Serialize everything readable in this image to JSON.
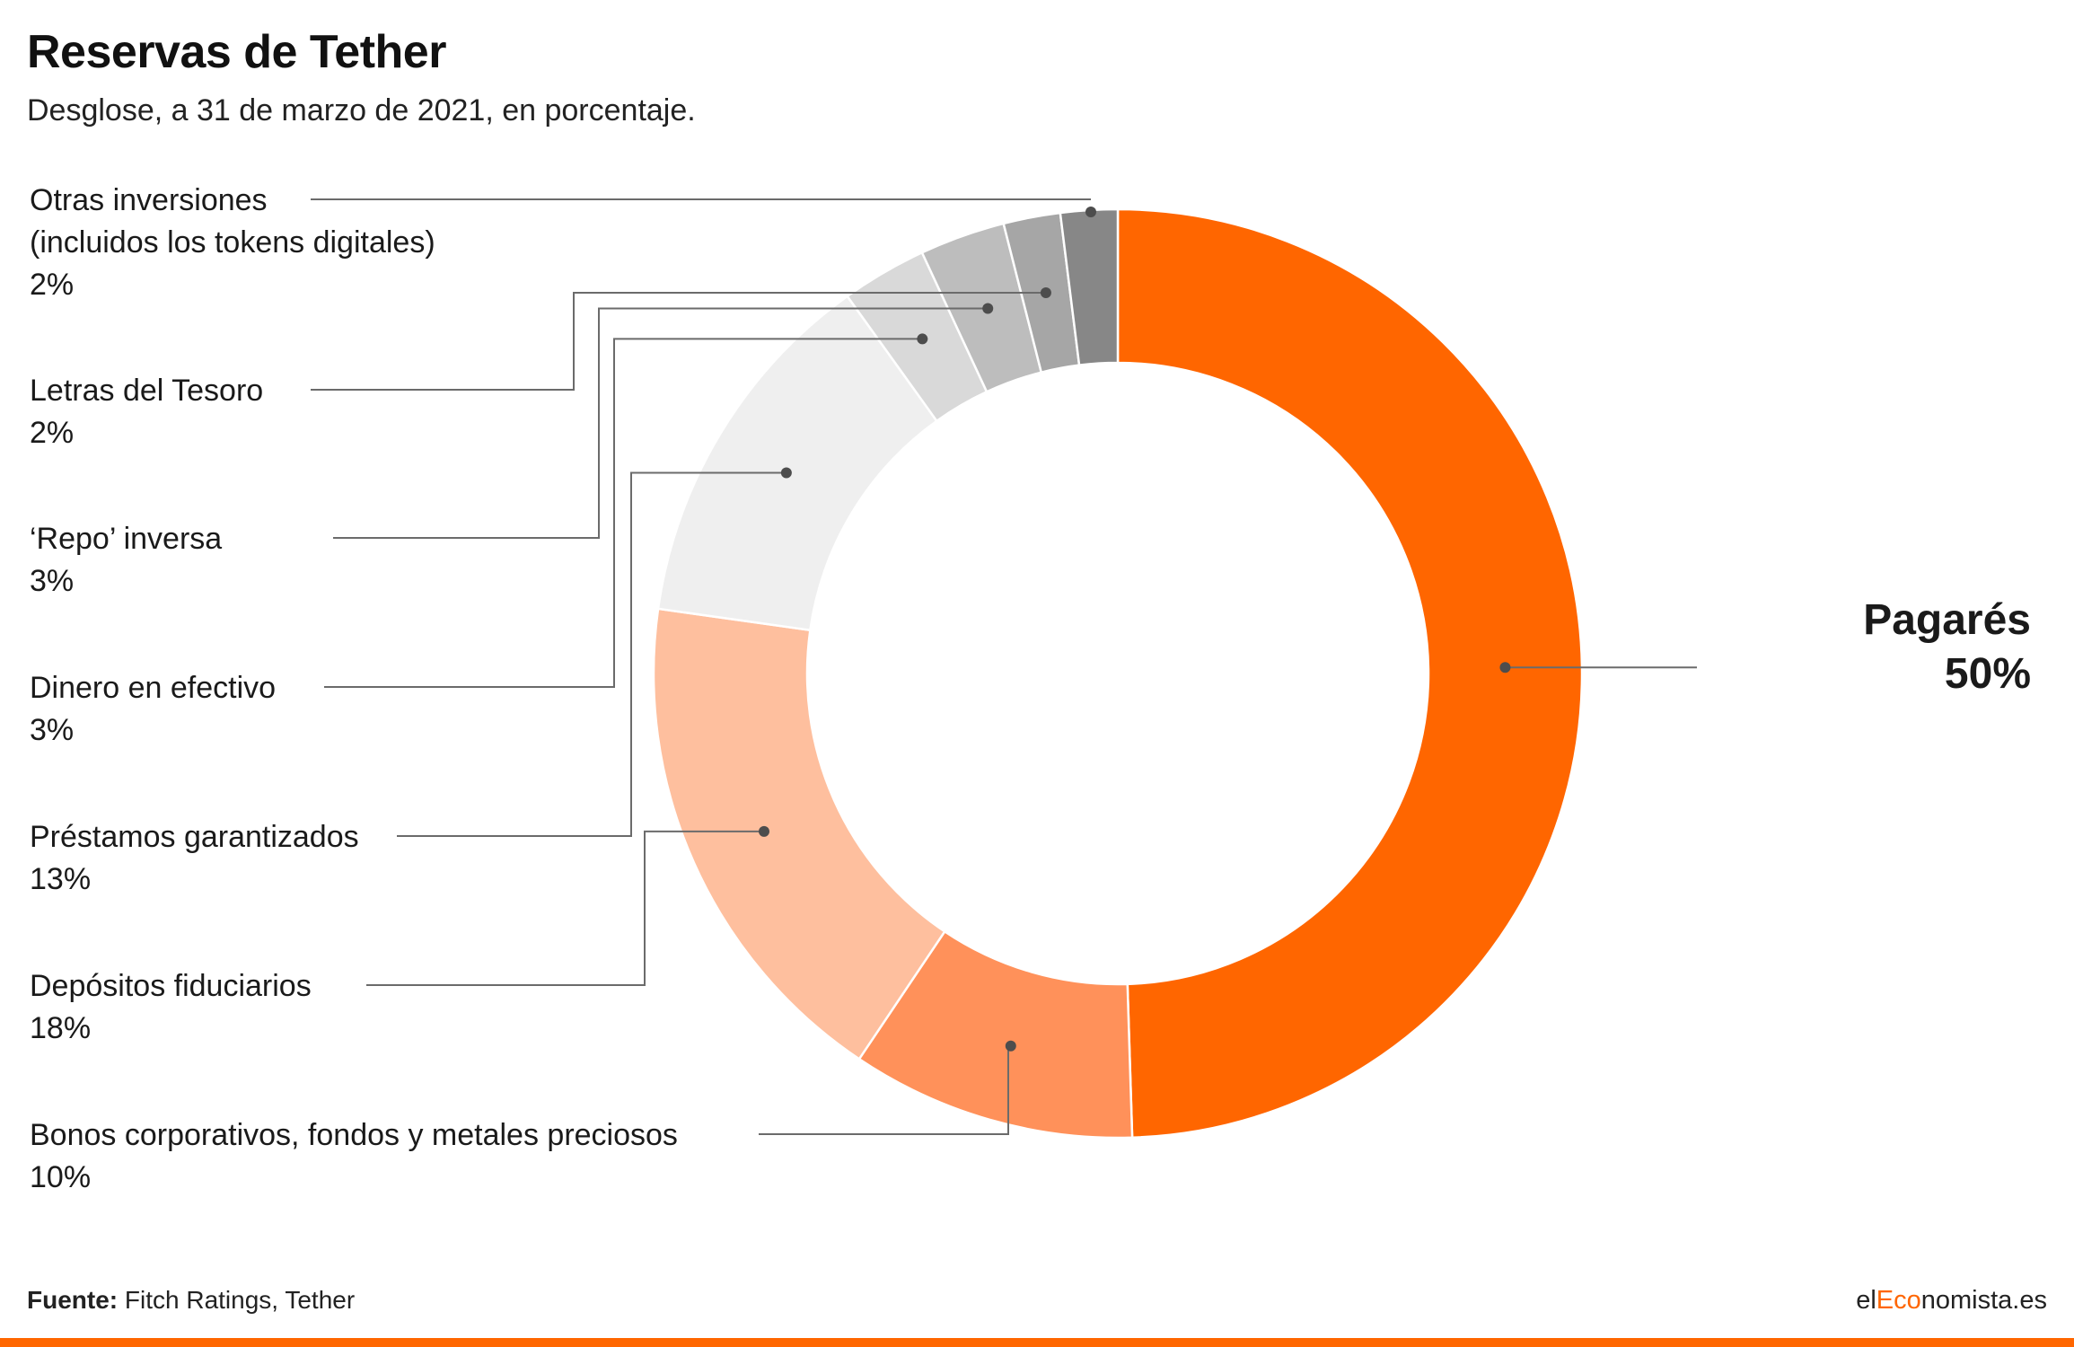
{
  "title": "Reservas de Tether",
  "subtitle": "Desglose, a 31 de marzo de 2021, en porcentaje.",
  "footer": {
    "source_label": "Fuente:",
    "source_text": "Fitch Ratings, Tether",
    "brand_prefix": "el",
    "brand_accent": "Eco",
    "brand_suffix": "nomista.es"
  },
  "colors": {
    "accent": "#ff6600",
    "bottom_bar": "#ff6600"
  },
  "chart_data": {
    "type": "pie",
    "variant": "donut",
    "title": "Reservas de Tether",
    "subtitle": "Desglose, a 31 de marzo de 2021, en porcentaje.",
    "unit": "%",
    "slices": [
      {
        "label": "Pagarés",
        "value": 50,
        "value_label": "50%",
        "color": "#ff6600"
      },
      {
        "label": "Bonos corporativos, fondos y metales preciosos",
        "value": 10,
        "value_label": "10%",
        "color": "#ff915a"
      },
      {
        "label": "Depósitos fiduciarios",
        "value": 18,
        "value_label": "18%",
        "color": "#febf9e"
      },
      {
        "label": "Préstamos garantizados",
        "value": 13,
        "value_label": "13%",
        "color": "#efefef"
      },
      {
        "label": "Dinero en efectivo",
        "value": 3,
        "value_label": "3%",
        "color": "#d9d9d9"
      },
      {
        "label": "‘Repo’ inversa",
        "value": 3,
        "value_label": "3%",
        "color": "#bdbdbd"
      },
      {
        "label": "Letras del Tesoro",
        "value": 2,
        "value_label": "2%",
        "color": "#a6a6a6"
      },
      {
        "label": "Otras inversiones\n(incluidos los tokens digitales)",
        "value": 2,
        "value_label": "2%",
        "color": "#878787"
      }
    ],
    "legend": "leader-line labels (left side, large label right)"
  }
}
